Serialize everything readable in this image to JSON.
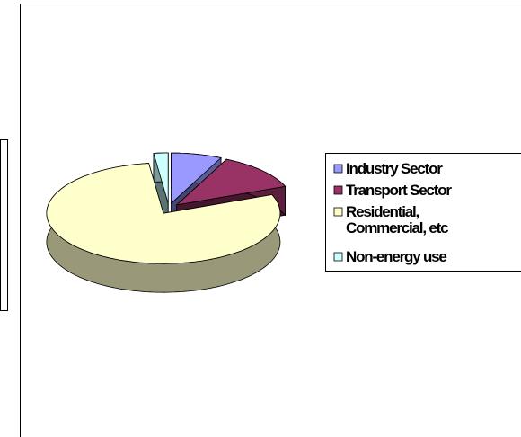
{
  "chart_data": {
    "type": "pie",
    "three_d": true,
    "categories": [
      "Industry Sector",
      "Transport Sector",
      "Residential, Commercial, etc",
      "Non-energy use"
    ],
    "values": [
      7,
      12,
      79,
      2
    ],
    "colors": [
      "#9999ff",
      "#993366",
      "#ffffcc",
      "#ccffff"
    ],
    "legend": "right"
  }
}
